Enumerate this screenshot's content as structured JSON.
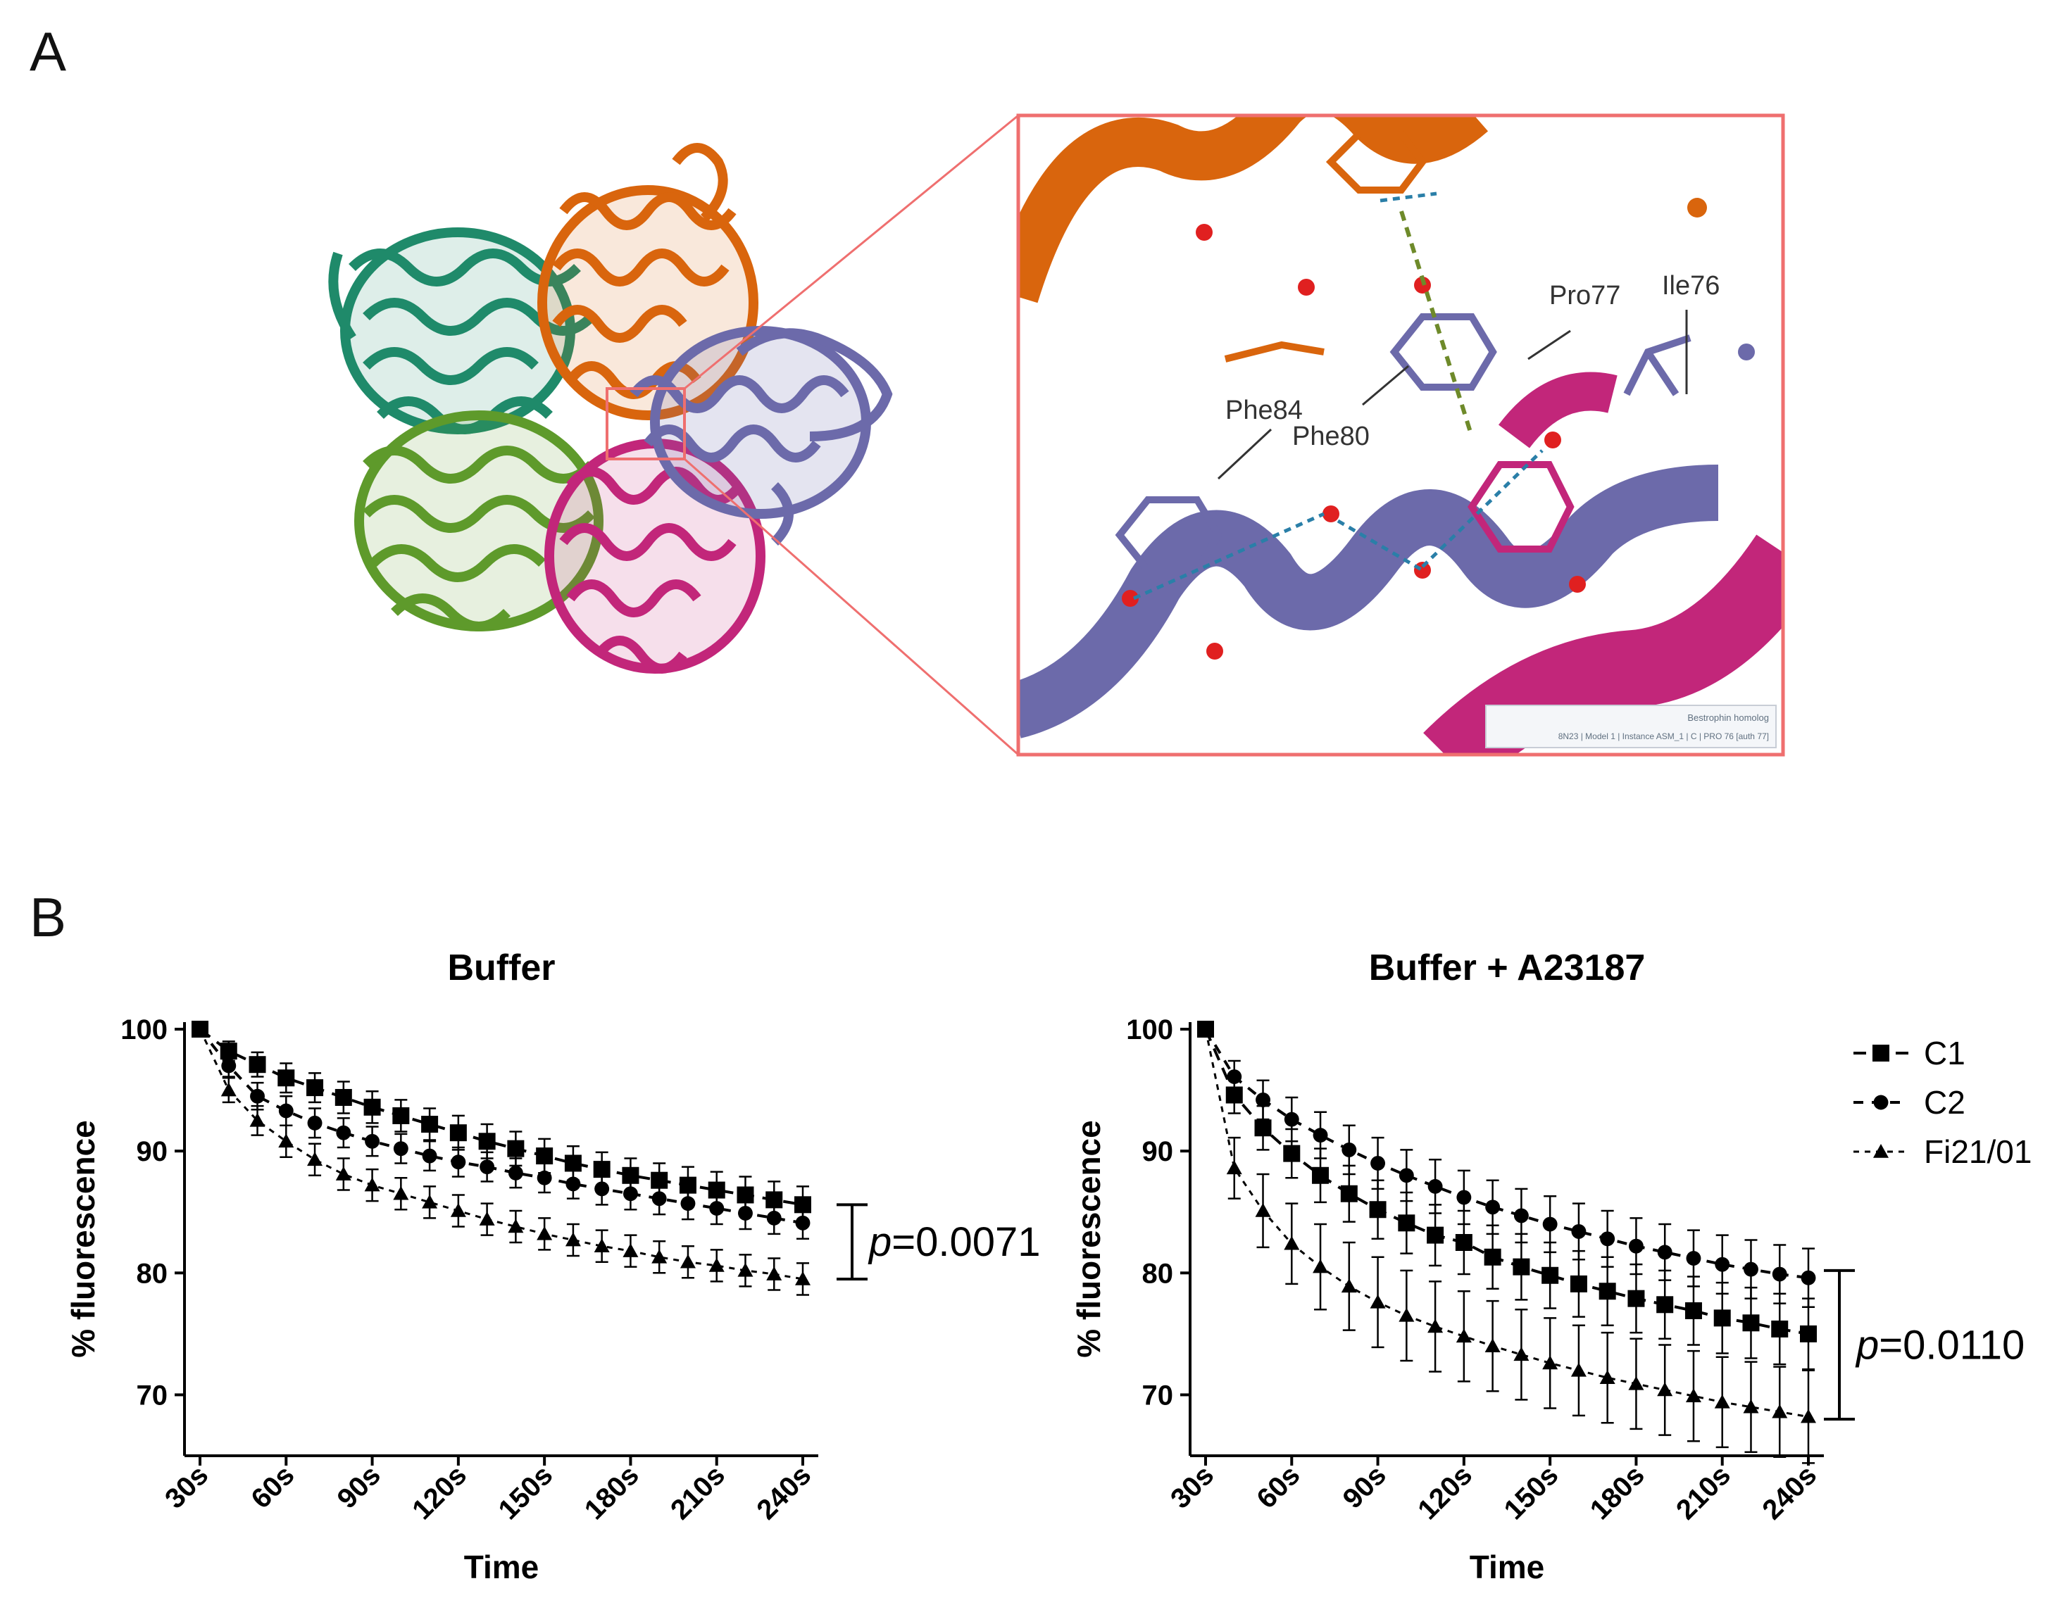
{
  "panel_labels": {
    "a": "A",
    "b": "B"
  },
  "structure": {
    "residue_labels": [
      "Phe84",
      "Phe80",
      "Pro77",
      "Ile76"
    ],
    "viewer_caption_line1": "Bestrophin homolog",
    "viewer_caption_line2": "8N23 | Model 1 | Instance ASM_1 | C | PRO 76 [auth 77]",
    "colors": {
      "orange": "#d9650d",
      "teal": "#1f8a6a",
      "green": "#5e9a2b",
      "purple": "#6c6aaa",
      "magenta": "#c2267a",
      "zoom_box": "#ef6f6f"
    }
  },
  "chart_data": [
    {
      "type": "line",
      "title": "Buffer",
      "xlabel": "Time",
      "ylabel": "% fluorescence",
      "x": [
        30,
        40,
        50,
        60,
        70,
        80,
        90,
        100,
        110,
        120,
        130,
        140,
        150,
        160,
        170,
        180,
        190,
        200,
        210,
        220,
        230,
        240
      ],
      "xticks": [
        30,
        60,
        90,
        120,
        150,
        180,
        210,
        240
      ],
      "xtick_labels": [
        "30s",
        "60s",
        "90s",
        "120s",
        "150s",
        "180s",
        "210s",
        "240s"
      ],
      "yticks": [
        70,
        80,
        90,
        100
      ],
      "ylim": [
        65,
        100
      ],
      "series": [
        {
          "name": "C1",
          "marker": "square",
          "values": [
            100,
            98.2,
            97.1,
            96.0,
            95.2,
            94.4,
            93.6,
            92.9,
            92.2,
            91.5,
            90.8,
            90.2,
            89.6,
            89.0,
            88.5,
            88.0,
            87.6,
            87.2,
            86.8,
            86.4,
            86.0,
            85.6
          ],
          "errors": [
            0,
            0.8,
            1.0,
            1.2,
            1.2,
            1.3,
            1.3,
            1.3,
            1.3,
            1.4,
            1.4,
            1.4,
            1.4,
            1.4,
            1.4,
            1.4,
            1.4,
            1.5,
            1.5,
            1.5,
            1.5,
            1.5
          ]
        },
        {
          "name": "C2",
          "marker": "circle",
          "values": [
            100,
            97.0,
            94.5,
            93.3,
            92.3,
            91.5,
            90.8,
            90.2,
            89.6,
            89.1,
            88.7,
            88.2,
            87.8,
            87.3,
            86.9,
            86.5,
            86.1,
            85.7,
            85.3,
            84.9,
            84.5,
            84.1
          ],
          "errors": [
            0,
            0.9,
            1.1,
            1.2,
            1.2,
            1.2,
            1.2,
            1.2,
            1.2,
            1.2,
            1.2,
            1.2,
            1.2,
            1.2,
            1.3,
            1.3,
            1.3,
            1.3,
            1.3,
            1.3,
            1.3,
            1.3
          ]
        },
        {
          "name": "Fi21/01",
          "marker": "triangle",
          "values": [
            100,
            95.0,
            92.5,
            90.8,
            89.3,
            88.1,
            87.2,
            86.5,
            85.8,
            85.1,
            84.4,
            83.8,
            83.2,
            82.7,
            82.2,
            81.8,
            81.3,
            80.9,
            80.6,
            80.2,
            79.9,
            79.5
          ],
          "errors": [
            0,
            1.0,
            1.2,
            1.3,
            1.3,
            1.3,
            1.3,
            1.3,
            1.3,
            1.3,
            1.3,
            1.3,
            1.3,
            1.3,
            1.3,
            1.3,
            1.3,
            1.3,
            1.3,
            1.3,
            1.3,
            1.3
          ]
        }
      ],
      "annotation": {
        "p_symbol": "p",
        "p_value": "=0.0071",
        "y_top": 85.6,
        "y_bottom": 79.5
      },
      "legend": false
    },
    {
      "type": "line",
      "title": "Buffer + A23187",
      "xlabel": "Time",
      "ylabel": "% fluorescence",
      "x": [
        30,
        40,
        50,
        60,
        70,
        80,
        90,
        100,
        110,
        120,
        130,
        140,
        150,
        160,
        170,
        180,
        190,
        200,
        210,
        220,
        230,
        240
      ],
      "xticks": [
        30,
        60,
        90,
        120,
        150,
        180,
        210,
        240
      ],
      "xtick_labels": [
        "30s",
        "60s",
        "90s",
        "120s",
        "150s",
        "180s",
        "210s",
        "240s"
      ],
      "yticks": [
        70,
        80,
        90,
        100
      ],
      "ylim": [
        65,
        100
      ],
      "series": [
        {
          "name": "C1",
          "marker": "square",
          "values": [
            100,
            94.6,
            91.9,
            89.8,
            88.0,
            86.5,
            85.2,
            84.1,
            83.1,
            82.5,
            81.3,
            80.5,
            79.8,
            79.1,
            78.5,
            77.9,
            77.4,
            76.9,
            76.3,
            75.9,
            75.4,
            75.0
          ],
          "errors": [
            0,
            1.5,
            1.8,
            2.0,
            2.2,
            2.3,
            2.4,
            2.5,
            2.5,
            2.6,
            2.6,
            2.7,
            2.7,
            2.7,
            2.8,
            2.8,
            2.8,
            2.8,
            2.9,
            2.9,
            2.9,
            2.9
          ]
        },
        {
          "name": "C2",
          "marker": "circle",
          "values": [
            100,
            96.1,
            94.2,
            92.6,
            91.3,
            90.1,
            89.0,
            88.0,
            87.1,
            86.2,
            85.4,
            84.7,
            84.0,
            83.4,
            82.8,
            82.2,
            81.7,
            81.2,
            80.7,
            80.3,
            79.9,
            79.6
          ],
          "errors": [
            0,
            1.3,
            1.6,
            1.8,
            1.9,
            2.0,
            2.1,
            2.1,
            2.2,
            2.2,
            2.2,
            2.2,
            2.3,
            2.3,
            2.3,
            2.3,
            2.3,
            2.3,
            2.4,
            2.4,
            2.4,
            2.4
          ]
        },
        {
          "name": "Fi21/01",
          "marker": "triangle",
          "values": [
            100,
            88.6,
            85.1,
            82.4,
            80.5,
            78.9,
            77.6,
            76.5,
            75.6,
            74.8,
            74.0,
            73.3,
            72.6,
            72.0,
            71.4,
            70.9,
            70.4,
            69.9,
            69.4,
            69.0,
            68.6,
            68.2
          ],
          "errors": [
            0,
            2.5,
            3.0,
            3.3,
            3.5,
            3.6,
            3.7,
            3.7,
            3.7,
            3.7,
            3.7,
            3.7,
            3.7,
            3.7,
            3.7,
            3.7,
            3.7,
            3.7,
            3.7,
            3.7,
            3.7,
            3.8
          ]
        }
      ],
      "annotation": {
        "p_symbol": "p",
        "p_value": "=0.0110",
        "y_top": 80.2,
        "y_bottom": 68.0
      },
      "legend": true,
      "legend_position": "top-right"
    }
  ]
}
